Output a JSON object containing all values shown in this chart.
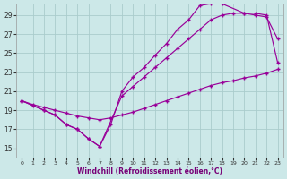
{
  "xlabel": "Windchill (Refroidissement éolien,°C)",
  "bg_color": "#cce8e8",
  "line_color": "#990099",
  "grid_color": "#aacccc",
  "xlim_min": -0.5,
  "xlim_max": 23.5,
  "ylim_min": 14.0,
  "ylim_max": 30.2,
  "yticks": [
    15,
    17,
    19,
    21,
    23,
    25,
    27,
    29
  ],
  "xticks": [
    0,
    1,
    2,
    3,
    4,
    5,
    6,
    7,
    8,
    9,
    10,
    11,
    12,
    13,
    14,
    15,
    16,
    17,
    18,
    19,
    20,
    21,
    22,
    23
  ],
  "line1_x": [
    0,
    1,
    2,
    3,
    4,
    5,
    6,
    7,
    9,
    10,
    11,
    12,
    13,
    14,
    15,
    16,
    17,
    18,
    19,
    20,
    21,
    22,
    23
  ],
  "line1_y": [
    20.0,
    19.5,
    19.0,
    18.5,
    17.5,
    17.0,
    16.0,
    15.2,
    20.5,
    21.5,
    22.5,
    23.5,
    24.5,
    25.5,
    26.5,
    27.5,
    28.5,
    29.0,
    29.2,
    29.2,
    29.2,
    29.0,
    24.0
  ],
  "line2_x": [
    0,
    2,
    3,
    4,
    5,
    6,
    7,
    8,
    9,
    10,
    11,
    12,
    13,
    14,
    15,
    16,
    17,
    18,
    20,
    21,
    22,
    23
  ],
  "line2_y": [
    20.0,
    19.0,
    18.5,
    17.5,
    17.0,
    16.0,
    15.2,
    17.5,
    21.0,
    22.5,
    23.5,
    24.8,
    26.0,
    27.5,
    28.5,
    30.0,
    30.2,
    30.2,
    29.2,
    29.0,
    28.8,
    26.5
  ],
  "line3_x": [
    0,
    1,
    2,
    3,
    4,
    5,
    6,
    7,
    8,
    9,
    10,
    11,
    12,
    13,
    14,
    15,
    16,
    17,
    18,
    19,
    20,
    21,
    22,
    23
  ],
  "line3_y": [
    20.0,
    19.6,
    19.3,
    19.0,
    18.7,
    18.4,
    18.2,
    18.0,
    18.2,
    18.5,
    18.8,
    19.2,
    19.6,
    20.0,
    20.4,
    20.8,
    21.2,
    21.6,
    21.9,
    22.1,
    22.4,
    22.6,
    22.9,
    23.3
  ]
}
